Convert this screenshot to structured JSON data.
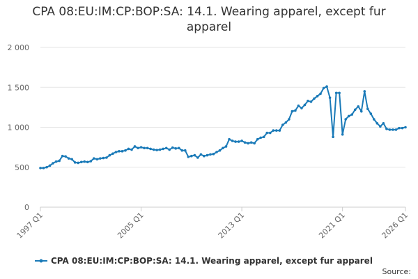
{
  "chart_data": {
    "type": "line",
    "title": "CPA 08:EU:IM:CP:BOP:SA: 14.1. Wearing apparel, except fur apparel",
    "source": "Source:",
    "categories": [
      "1997 Q1",
      null,
      null,
      null,
      null,
      null,
      null,
      null,
      null,
      null,
      null,
      null,
      null,
      null,
      null,
      null,
      null,
      null,
      null,
      null,
      null,
      null,
      null,
      null,
      null,
      null,
      null,
      null,
      null,
      null,
      null,
      null,
      "2005 Q1",
      null,
      null,
      null,
      null,
      null,
      null,
      null,
      null,
      null,
      null,
      null,
      null,
      null,
      null,
      null,
      null,
      null,
      null,
      null,
      null,
      null,
      null,
      null,
      null,
      null,
      null,
      null,
      null,
      null,
      null,
      null,
      "2013 Q1",
      null,
      null,
      null,
      null,
      null,
      null,
      null,
      null,
      null,
      null,
      null,
      null,
      null,
      null,
      null,
      null,
      null,
      null,
      null,
      null,
      null,
      null,
      null,
      null,
      null,
      null,
      null,
      null,
      null,
      null,
      null,
      "2021 Q1",
      null,
      null,
      null,
      null,
      null,
      null,
      null,
      null,
      null,
      null,
      null,
      null,
      null,
      null,
      null,
      null,
      null,
      null,
      null,
      "2026 Q1"
    ],
    "series": [
      {
        "name": "CPA 08:EU:IM:CP:BOP:SA: 14.1. Wearing apparel, except fur apparel",
        "color": "#1a7ab8",
        "values": [
          490,
          490,
          500,
          520,
          550,
          570,
          580,
          640,
          635,
          610,
          600,
          560,
          555,
          565,
          570,
          565,
          575,
          610,
          600,
          610,
          615,
          620,
          650,
          670,
          690,
          700,
          700,
          710,
          730,
          720,
          760,
          740,
          750,
          740,
          740,
          730,
          720,
          715,
          720,
          730,
          740,
          720,
          745,
          735,
          740,
          710,
          710,
          630,
          640,
          650,
          620,
          660,
          640,
          650,
          660,
          665,
          690,
          710,
          740,
          760,
          850,
          830,
          820,
          820,
          830,
          810,
          800,
          810,
          800,
          850,
          870,
          880,
          930,
          930,
          960,
          960,
          960,
          1030,
          1060,
          1100,
          1200,
          1210,
          1270,
          1240,
          1280,
          1330,
          1320,
          1360,
          1390,
          1420,
          1490,
          1510,
          1370,
          880,
          1430,
          1430,
          910,
          1100,
          1140,
          1160,
          1220,
          1260,
          1200,
          1450,
          1230,
          1170,
          1100,
          1050,
          1010,
          1050,
          980,
          970,
          970,
          970,
          990,
          990,
          1000
        ]
      }
    ],
    "ylim": [
      0,
      2000
    ],
    "yticks": [
      0,
      500,
      {
        "value": 1000,
        "label": "1 000"
      },
      {
        "value": 1500,
        "label": "1 500"
      },
      {
        "value": 2000,
        "label": "2 000"
      }
    ],
    "grid": true
  }
}
